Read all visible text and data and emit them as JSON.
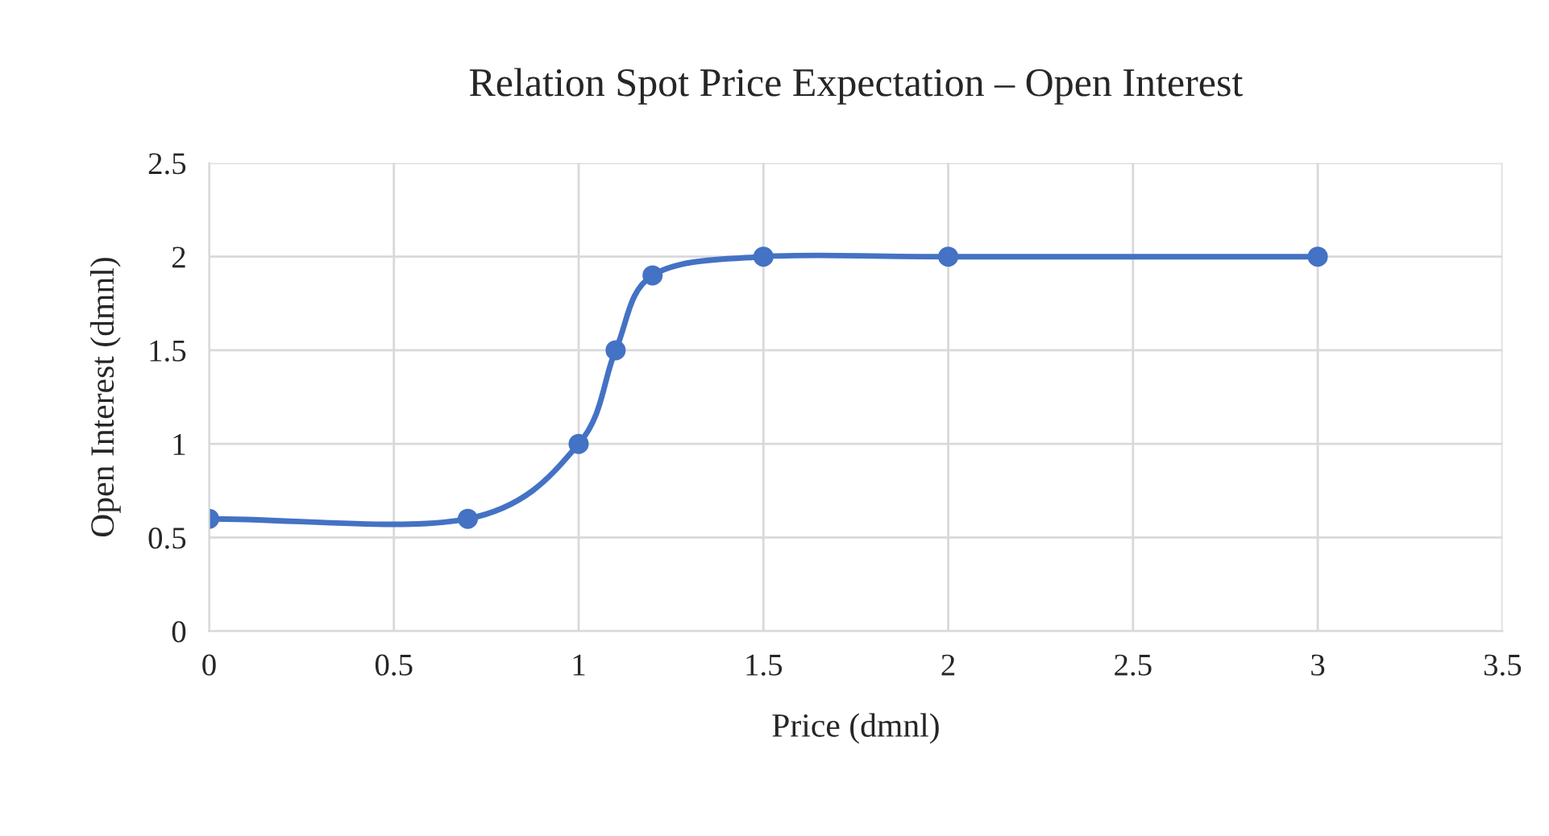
{
  "chart_data": {
    "type": "line",
    "title": "Relation Spot Price Expectation – Open Interest",
    "xlabel": "Price (dmnl)",
    "ylabel": "Open Interest (dmnl)",
    "x": [
      0,
      0.7,
      1,
      1.1,
      1.2,
      1.5,
      2,
      3
    ],
    "series": [
      {
        "color": "#4472c4",
        "values": [
          0.6,
          0.6,
          1,
          1.5,
          1.9,
          2,
          2,
          2
        ]
      }
    ],
    "xlim": [
      0,
      3.5
    ],
    "xticks": [
      0,
      0.5,
      1,
      1.5,
      2,
      2.5,
      3,
      3.5
    ],
    "ylim": [
      0,
      2.5
    ],
    "yticks": [
      0,
      0.5,
      1,
      1.5,
      2,
      2.5
    ],
    "grid": true,
    "marker": "circle",
    "line_style": "solid"
  }
}
